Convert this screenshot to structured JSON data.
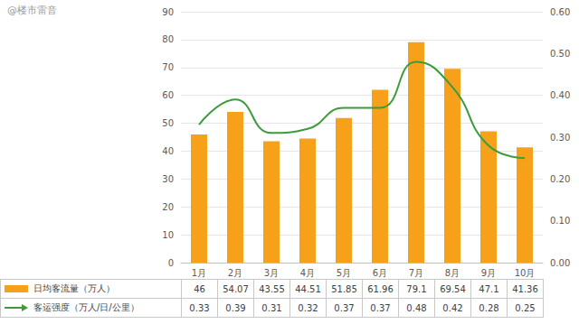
{
  "chart_data": {
    "type": "bar",
    "categories": [
      "1月",
      "2月",
      "3月",
      "4月",
      "5月",
      "6月",
      "7月",
      "8月",
      "9月",
      "10月"
    ],
    "series": [
      {
        "name": "日均客流量（万人）",
        "type": "bar",
        "color": "#F7A11A",
        "values": [
          46,
          54.07,
          43.55,
          44.51,
          51.85,
          61.96,
          79.1,
          69.54,
          47.1,
          41.36
        ]
      },
      {
        "name": "客运强度（万人/日/公里）",
        "type": "line",
        "axis": "y2",
        "color": "#3D9A3D",
        "values": [
          0.33,
          0.39,
          0.31,
          0.32,
          0.37,
          0.37,
          0.48,
          0.42,
          0.28,
          0.25
        ]
      }
    ],
    "ylim": [
      0,
      90
    ],
    "yticks": [
      0,
      10,
      20,
      30,
      40,
      50,
      60,
      70,
      80,
      90
    ],
    "y2lim": [
      0,
      0.6
    ],
    "y2ticks": [
      {
        "value": 0,
        "label": "0.00"
      },
      {
        "value": 0.1,
        "label": "0.10"
      },
      {
        "value": 0.2,
        "label": "0.20"
      },
      {
        "value": 0.3,
        "label": "0.30"
      },
      {
        "value": 0.4,
        "label": "0.40"
      },
      {
        "value": 0.5,
        "label": "0.50"
      },
      {
        "value": 0.6,
        "label": "0.60"
      }
    ],
    "grid": true,
    "data_labels": true,
    "annotations": [
      "@楼市雷音"
    ]
  }
}
